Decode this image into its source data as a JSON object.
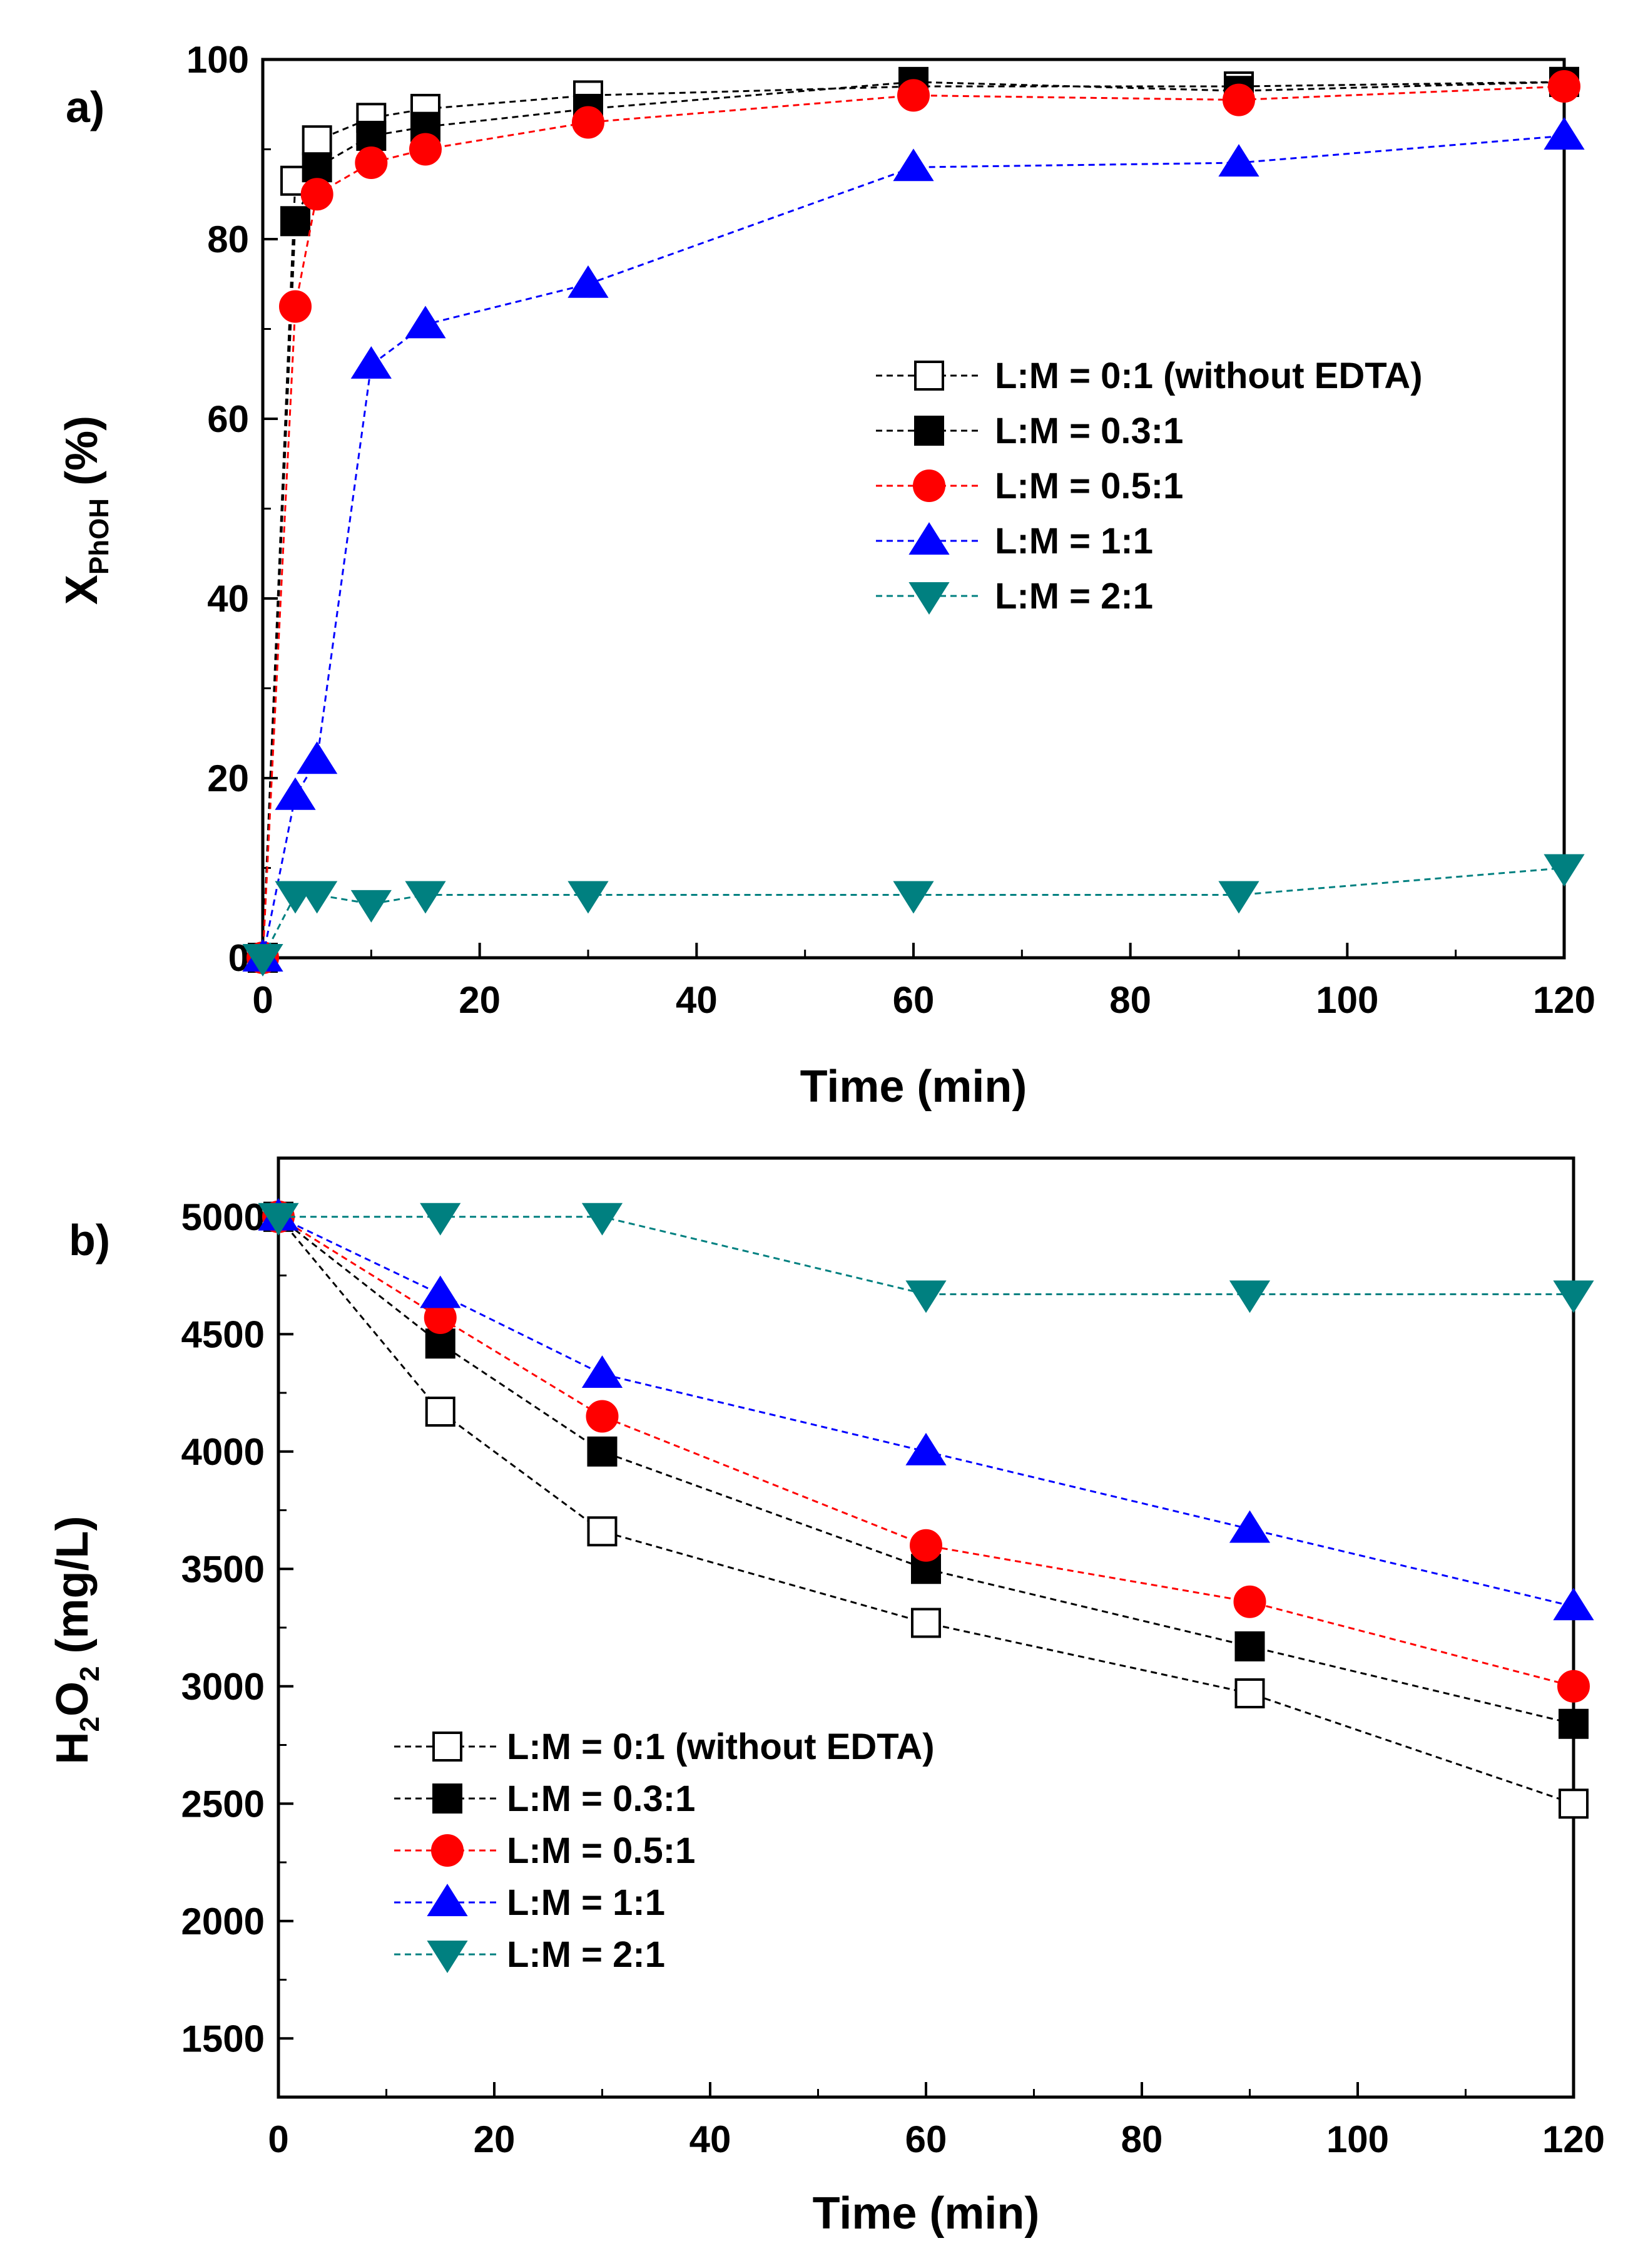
{
  "chart_data": [
    {
      "panel_label": "a)",
      "type": "line",
      "xlabel": "Time (min)",
      "ylabel_main": "X",
      "ylabel_sub": "PhOH",
      "ylabel_rest": " (%)",
      "xlim": [
        0,
        120
      ],
      "ylim": [
        0,
        100
      ],
      "xticks": [
        0,
        20,
        40,
        60,
        80,
        100,
        120
      ],
      "yticks": [
        0,
        20,
        40,
        60,
        80,
        100
      ],
      "legend_position": "center-right",
      "series": [
        {
          "name": "L:M = 0:1 (without EDTA)",
          "color": "#000000",
          "marker": "square-open",
          "x": [
            0,
            3,
            5,
            10,
            15,
            30,
            60,
            90,
            120
          ],
          "y": [
            0,
            86.5,
            91,
            93.5,
            94.5,
            96,
            97,
            97,
            97.5
          ]
        },
        {
          "name": "L:M = 0.3:1",
          "color": "#000000",
          "marker": "square-filled",
          "x": [
            0,
            3,
            5,
            10,
            15,
            30,
            60,
            90,
            120
          ],
          "y": [
            0,
            82,
            88,
            91.5,
            92.5,
            94.5,
            97.5,
            96.5,
            97.5
          ]
        },
        {
          "name": "L:M = 0.5:1",
          "color": "#ff0000",
          "marker": "circle",
          "x": [
            0,
            3,
            5,
            10,
            15,
            30,
            60,
            90,
            120
          ],
          "y": [
            0,
            72.5,
            85,
            88.5,
            90,
            93,
            96,
            95.5,
            97
          ]
        },
        {
          "name": "L:M = 1:1",
          "color": "#0000ff",
          "marker": "triangle-up",
          "x": [
            0,
            3,
            5,
            10,
            15,
            30,
            60,
            90,
            120
          ],
          "y": [
            0,
            18,
            22,
            66,
            70.5,
            75,
            88,
            88.5,
            91.5
          ]
        },
        {
          "name": "L:M = 2:1",
          "color": "#008080",
          "marker": "triangle-down",
          "x": [
            0,
            3,
            5,
            10,
            15,
            30,
            60,
            90,
            120
          ],
          "y": [
            0,
            7,
            7,
            6,
            7,
            7,
            7,
            7,
            10
          ]
        }
      ]
    },
    {
      "panel_label": "b)",
      "type": "line",
      "xlabel": "Time (min)",
      "ylabel_main": "H",
      "ylabel_sub": "2",
      "ylabel_mid": "O",
      "ylabel_sub2": "2",
      "ylabel_rest": " (mg/L)",
      "xlim": [
        0,
        120
      ],
      "ylim": [
        1250,
        5250
      ],
      "xticks": [
        0,
        20,
        40,
        60,
        80,
        100,
        120
      ],
      "yticks": [
        1500,
        2000,
        2500,
        3000,
        3500,
        4000,
        4500,
        5000
      ],
      "legend_position": "bottom-left",
      "series": [
        {
          "name": "L:M = 0:1 (without EDTA)",
          "color": "#000000",
          "marker": "square-open",
          "x": [
            0,
            15,
            30,
            60,
            90,
            120
          ],
          "y": [
            5000,
            4170,
            3660,
            3270,
            2970,
            2500
          ]
        },
        {
          "name": "L:M = 0.3:1",
          "color": "#000000",
          "marker": "square-filled",
          "x": [
            0,
            15,
            30,
            60,
            90,
            120
          ],
          "y": [
            5000,
            4460,
            4000,
            3500,
            3170,
            2840
          ]
        },
        {
          "name": "L:M = 0.5:1",
          "color": "#ff0000",
          "marker": "circle",
          "x": [
            0,
            15,
            30,
            60,
            90,
            120
          ],
          "y": [
            5000,
            4570,
            4150,
            3600,
            3360,
            3000
          ]
        },
        {
          "name": "L:M = 1:1",
          "color": "#0000ff",
          "marker": "triangle-up",
          "x": [
            0,
            15,
            30,
            60,
            90,
            120
          ],
          "y": [
            5000,
            4670,
            4330,
            4000,
            3670,
            3340
          ]
        },
        {
          "name": "L:M = 2:1",
          "color": "#008080",
          "marker": "triangle-down",
          "x": [
            0,
            15,
            30,
            60,
            90,
            120
          ],
          "y": [
            5000,
            5000,
            5000,
            4670,
            4670,
            4670
          ]
        }
      ]
    }
  ]
}
